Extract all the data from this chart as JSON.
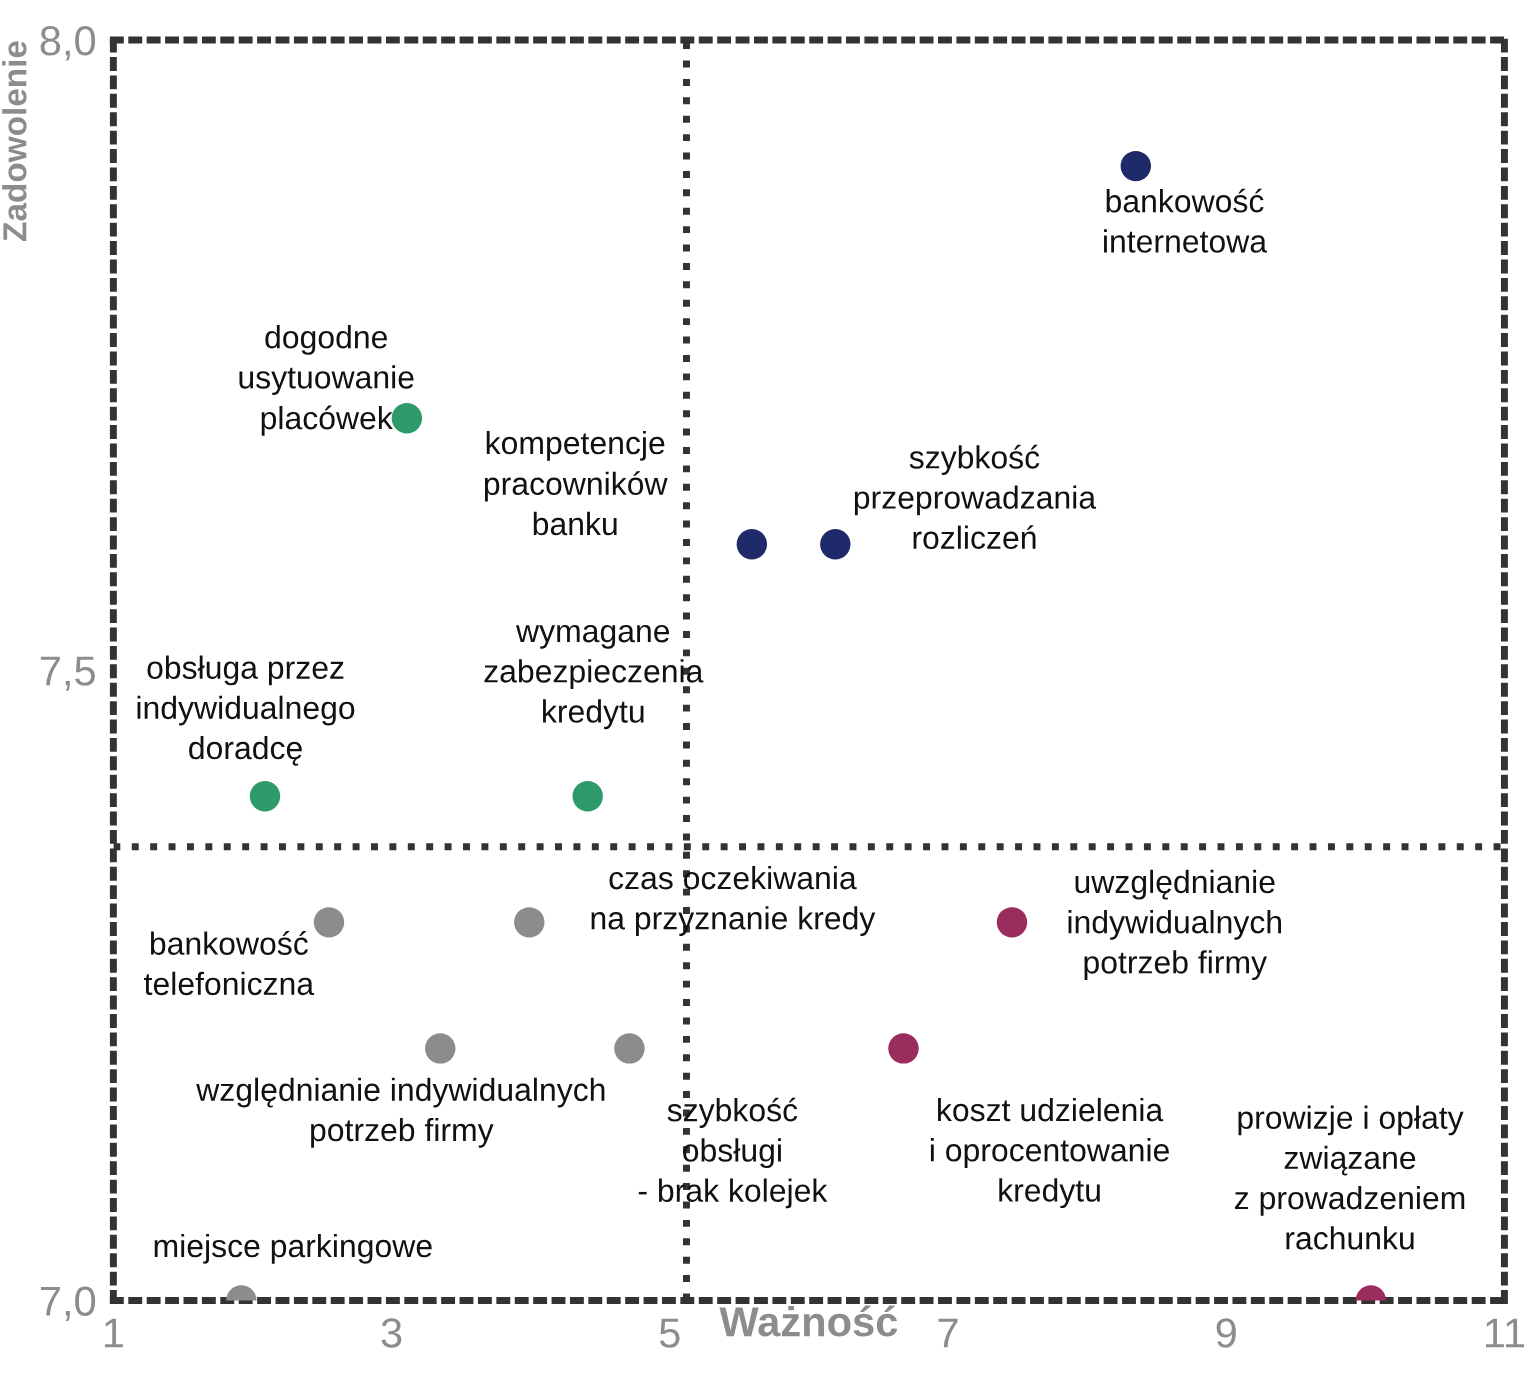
{
  "chart_data": {
    "type": "scatter",
    "xlabel": "Ważność",
    "ylabel": "Zadowolenie",
    "xlim": [
      1,
      11
    ],
    "ylim": [
      7,
      8
    ],
    "xticks": [
      1,
      3,
      5,
      7,
      9,
      11
    ],
    "yticks": [
      {
        "value": 7,
        "label": "7,0"
      },
      {
        "value": 7.5,
        "label": "7,5"
      },
      {
        "value": 8,
        "label": "8,0"
      }
    ],
    "grid": false,
    "legend": false,
    "marker": "circle",
    "series": [
      {
        "color": "#1f2a6b",
        "x": [
          8.35,
          5.59,
          6.19
        ],
        "values": [
          7.9,
          7.6,
          7.6
        ]
      },
      {
        "color": "#2e9a6b",
        "x": [
          3.11,
          2.09,
          4.41
        ],
        "values": [
          7.7,
          7.4,
          7.4
        ]
      },
      {
        "color": "#8c8c8c",
        "x": [
          2.55,
          3.99,
          3.35,
          4.71,
          1.92
        ],
        "values": [
          7.3,
          7.3,
          7.2,
          7.2,
          7.0
        ]
      },
      {
        "color": "#9b2d5e",
        "x": [
          7.46,
          6.68,
          10.04
        ],
        "values": [
          7.3,
          7.2,
          7.0
        ]
      }
    ],
    "ref_lines": [
      {
        "axis": "x",
        "value": 5.12,
        "color": "#333333",
        "line_style": "dotted"
      },
      {
        "axis": "y",
        "value": 7.36,
        "color": "#333333",
        "line_style": "dotted"
      }
    ],
    "annotations": [
      "bankowość\ninternetowa",
      "dogodne\nusytuowanie\nplacówek",
      "kompetencje\npracowników\nbanku",
      "szybkość\nprzeprowadzania\nrozliczeń",
      "wymagane\nzabezpieczenia\nkredytu",
      "obsługa przez\nindywidualnego\ndoradcę",
      "czas oczekiwania\nna przyznanie kredy",
      "uwzględnianie\nindywidualnych\npotrzeb firmy",
      "bankowość\ntelefoniczna",
      "względnianie indywidualnych\npotrzeb firmy",
      "szybkość\nobsługi\n- brak kolejek",
      "koszt udzielenia\ni oprocentowanie\nkredytu",
      "prowizje i opłaty\nzwiązane\nz prowadzeniem\nrachunku",
      "miejsce parkingowe"
    ]
  }
}
